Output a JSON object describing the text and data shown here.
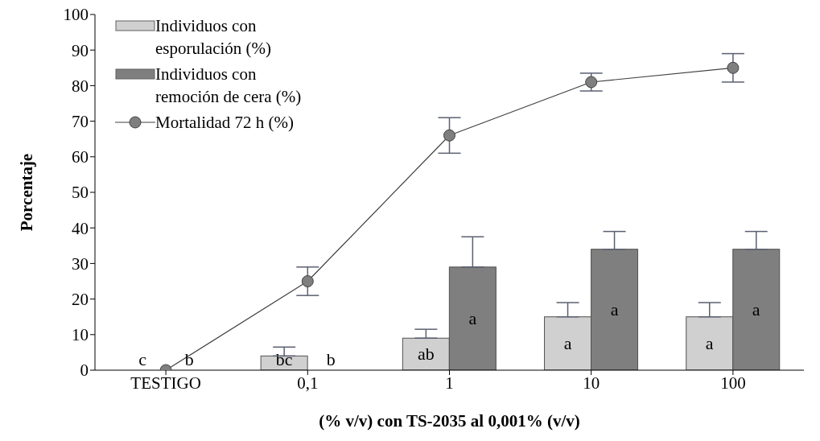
{
  "chart_data": {
    "type": "bar",
    "xlabel": "(% v/v) con TS-2035 al 0,001% (v/v)",
    "ylabel": "Porcentaje",
    "categories": [
      "TESTIGO",
      "0,1",
      "1",
      "10",
      "100"
    ],
    "series": [
      {
        "name": "Individuos con esporulación (%)",
        "color": "#d0d0d0",
        "values": [
          0,
          4,
          9,
          15,
          15
        ],
        "errors": [
          null,
          [
            4,
            6.5
          ],
          [
            9,
            11.5
          ],
          [
            15,
            19
          ],
          [
            15,
            19
          ]
        ],
        "value_labels": [
          null,
          "bc",
          "ab",
          "a",
          "a"
        ]
      },
      {
        "name": "Individuos con remoción de cera (%)",
        "color": "#7f7f7f",
        "values": [
          0,
          0,
          29,
          34,
          34
        ],
        "errors": [
          null,
          null,
          [
            29,
            37.5
          ],
          [
            34,
            39
          ],
          [
            34,
            39
          ]
        ],
        "value_labels": [
          null,
          null,
          "a",
          "a",
          "a"
        ]
      },
      {
        "name": "Mortalidad 72 h (%)",
        "type": "line",
        "color": "#7f7f7f",
        "values": [
          0,
          25,
          66,
          81,
          85
        ],
        "errors": [
          null,
          4,
          5,
          2.5,
          4
        ]
      }
    ],
    "annotations": [
      {
        "text": "c",
        "x": "TESTIGO",
        "y": 0
      },
      {
        "text": "b",
        "x": "TESTIGO",
        "y": 0
      },
      {
        "text": "b",
        "x": "0,1",
        "y": 0
      }
    ],
    "marker": "circle",
    "ylim": [
      0,
      100
    ],
    "yticks": [
      0,
      10,
      20,
      30,
      40,
      50,
      60,
      70,
      80,
      90,
      100
    ],
    "grid": false,
    "legend": "top left"
  }
}
